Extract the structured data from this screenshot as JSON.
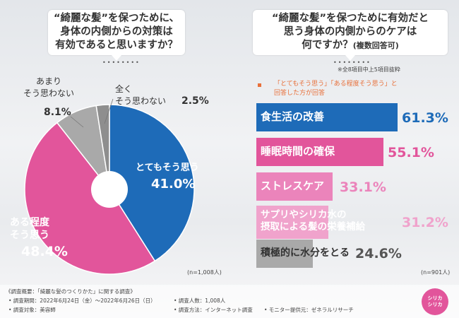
{
  "left_question": "“綺麗な髪”を保つために、\n身体の内側からの対策は\n有効であると思いますか？",
  "right_question_line1": "“綺麗な髪”を保つために有効だと",
  "right_question_line2": "思う身体の内側からのケアは",
  "right_question_line3": "何ですか？",
  "right_question_note": "(複数回答可)",
  "right_subnote": "※全8項目中上5項目抜粋",
  "legend_line1": "「とてもそう思う」「ある程度そう思う」と",
  "legend_line2": "回答した方が回答",
  "left_n": "(n=1,008人)",
  "right_n": "(n=901人)",
  "footer": {
    "title": "《調査概要：「綺麗な髪のつくりかた」に関する調査》",
    "period": "• 調査期間：2022年6月24日（金）～2022年6月26日（日）",
    "people": "• 調査人数：1,008人",
    "target": "• 調査対象：美容師",
    "method": "• 調査方法：インターネット調査",
    "provider": "• モニター提供元：ゼネラルリサーチ"
  },
  "logo_text": "シリカシリカ",
  "colors": {
    "blue": "#1e6bb8",
    "pink": "#e2559b",
    "pink_mid": "#eb84bb",
    "pink_light": "#f0a3cc",
    "grey": "#a9a9a9",
    "grey_dark": "#8e8e8e",
    "legend_square": "#e8703a"
  },
  "chart_data": [
    {
      "type": "pie",
      "title": "“綺麗な髪”を保つために、身体の内側からの対策は有効であると思いますか？",
      "labels": [
        "とてもそう思う",
        "ある程度そう思う",
        "あまりそう思わない",
        "全くそう思わない"
      ],
      "label_display": [
        "とてもそう思う",
        "ある程度\nそう思う",
        "あまり\nそう思わない",
        "全く\nそう思わない"
      ],
      "values": [
        41.0,
        48.4,
        8.1,
        2.5
      ],
      "value_labels": [
        "41.0%",
        "48.4%",
        "8.1%",
        "2.5%"
      ],
      "n": "n=1,008人"
    },
    {
      "type": "bar",
      "orientation": "horizontal",
      "title": "“綺麗な髪”を保つために有効だと思う身体の内側からのケアは何ですか？",
      "categories": [
        "食生活の改善",
        "睡眠時間の確保",
        "ストレスケア",
        "サプリやシリカ水の\n摂取による髪の栄養補給",
        "積極的に水分をとる"
      ],
      "values": [
        61.3,
        55.1,
        33.1,
        31.2,
        24.6
      ],
      "value_labels": [
        "61.3%",
        "55.1%",
        "33.1%",
        "31.2%",
        "24.6%"
      ],
      "n": "n=901人"
    }
  ]
}
